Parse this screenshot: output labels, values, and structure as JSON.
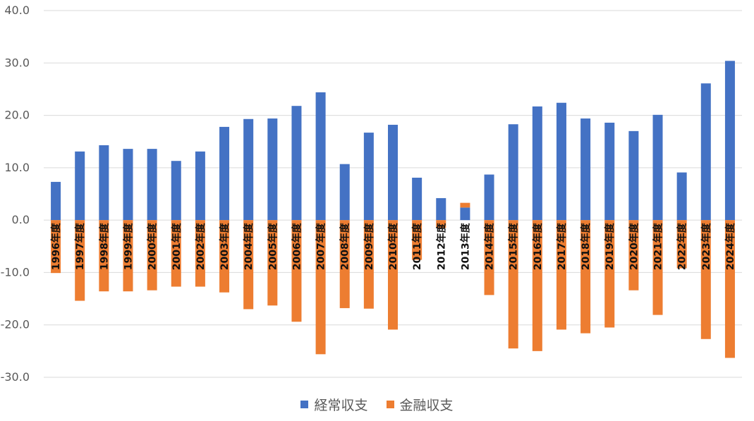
{
  "chart_data": {
    "type": "bar",
    "title": "",
    "xlabel": "",
    "ylabel": "",
    "ylim": [
      -30,
      40
    ],
    "yticks": [
      "40.0",
      "30.0",
      "20.0",
      "10.0",
      "0.0",
      "-10.0",
      "-20.0",
      "-30.0"
    ],
    "ytick_values": [
      40,
      30,
      20,
      10,
      0,
      -10,
      -20,
      -30
    ],
    "grid": true,
    "legend_position": "bottom",
    "categories": [
      "1996年度",
      "1997年度",
      "1998年度",
      "1999年度",
      "2000年度",
      "2001年度",
      "2002年度",
      "2003年度",
      "2004年度",
      "2005年度",
      "2006年度",
      "2007年度",
      "2008年度",
      "2009年度",
      "2010年度",
      "2011年度",
      "2012年度",
      "2013年度",
      "2014年度",
      "2015年度",
      "2016年度",
      "2017年度",
      "2018年度",
      "2019年度",
      "2020年度",
      "2021年度",
      "2022年度",
      "2023年度",
      "2024年度"
    ],
    "series": [
      {
        "name": "経常収支",
        "color": "#4472C4",
        "values": [
          7.3,
          13.1,
          14.3,
          13.6,
          13.6,
          11.3,
          13.1,
          17.8,
          19.3,
          19.4,
          21.8,
          24.4,
          10.7,
          16.7,
          18.2,
          8.1,
          4.2,
          2.4,
          8.7,
          18.3,
          21.7,
          22.4,
          19.4,
          18.6,
          17.0,
          20.1,
          9.1,
          26.1,
          30.4
        ]
      },
      {
        "name": "金融収支",
        "color": "#ED7D31",
        "values": [
          -10.1,
          -15.4,
          -13.6,
          -13.6,
          -13.4,
          -12.7,
          -12.7,
          -13.8,
          -17.0,
          -16.3,
          -19.4,
          -25.6,
          -16.8,
          -16.9,
          -20.9,
          -7.6,
          -1.5,
          0.9,
          -14.3,
          -24.5,
          -25.0,
          -20.9,
          -21.6,
          -20.5,
          -13.4,
          -18.1,
          -9.2,
          -22.7,
          -26.3
        ]
      }
    ]
  }
}
